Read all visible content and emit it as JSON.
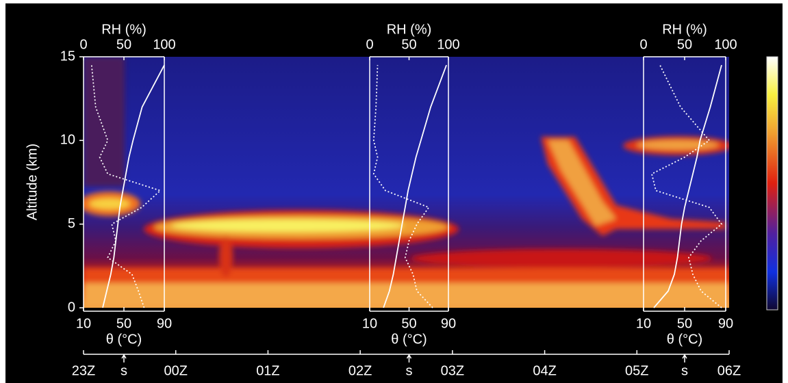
{
  "chart_data": {
    "type": "heatmap",
    "ylabel": "Altitude (km)",
    "ylim": [
      0,
      15
    ],
    "yticks": [
      0,
      5,
      10,
      15
    ],
    "time_ticks": [
      "23Z",
      "00Z",
      "01Z",
      "02Z",
      "03Z",
      "04Z",
      "05Z",
      "06Z"
    ],
    "soundings": [
      {
        "rh_label": "RH (%)",
        "rh_lim": [
          0,
          100
        ],
        "rh_ticks": [
          0,
          50,
          100
        ],
        "theta_label": "θ (°C)",
        "theta_lim": [
          10,
          90
        ],
        "theta_ticks": [
          10,
          50,
          90
        ],
        "marker": "s",
        "altitude": [
          0,
          1,
          2,
          3,
          4,
          5,
          6,
          7,
          8,
          9,
          10,
          12,
          14.5
        ],
        "theta": [
          29,
          33,
          37,
          40,
          42,
          44,
          46,
          49,
          52,
          55,
          59,
          68,
          90
        ],
        "rh": [
          75,
          68,
          60,
          30,
          40,
          35,
          72,
          95,
          30,
          20,
          30,
          15,
          10
        ]
      },
      {
        "rh_label": "RH (%)",
        "rh_lim": [
          0,
          100
        ],
        "rh_ticks": [
          0,
          50,
          100
        ],
        "theta_label": "θ (°C)",
        "theta_lim": [
          10,
          90
        ],
        "theta_ticks": [
          10,
          50,
          90
        ],
        "marker": "s",
        "altitude": [
          0,
          1,
          2,
          3,
          4,
          5,
          6,
          7,
          8,
          9,
          10,
          12,
          14.5
        ],
        "theta": [
          24,
          30,
          34,
          37,
          40,
          43,
          46,
          49,
          53,
          57,
          62,
          72,
          88
        ],
        "rh": [
          80,
          60,
          55,
          45,
          50,
          60,
          75,
          20,
          5,
          10,
          5,
          8,
          10
        ]
      },
      {
        "rh_label": "RH (%)",
        "rh_lim": [
          0,
          100
        ],
        "rh_ticks": [
          0,
          50,
          100
        ],
        "theta_label": "θ (°C)",
        "theta_lim": [
          10,
          90
        ],
        "theta_ticks": [
          10,
          50,
          90
        ],
        "marker": "s",
        "altitude": [
          0,
          1,
          2,
          3,
          4,
          5,
          6,
          7,
          8,
          9,
          10,
          12,
          14.5
        ],
        "theta": [
          20,
          34,
          40,
          43,
          45,
          47,
          50,
          54,
          58,
          62,
          65,
          75,
          86
        ],
        "rh": [
          95,
          70,
          60,
          55,
          70,
          95,
          80,
          15,
          10,
          50,
          80,
          45,
          20
        ]
      }
    ]
  }
}
